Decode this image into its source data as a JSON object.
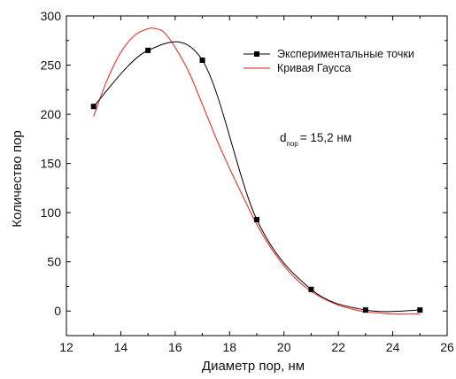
{
  "chart_data": {
    "type": "scatter",
    "xlabel": "Диаметр пор, нм",
    "ylabel": "Количество пор",
    "xlim": [
      12,
      26
    ],
    "ylim": [
      -25,
      300
    ],
    "x_ticks": [
      12,
      14,
      16,
      18,
      20,
      22,
      24,
      26
    ],
    "y_ticks": [
      0,
      50,
      100,
      150,
      200,
      250,
      300
    ],
    "x_tick_labels": [
      "12",
      "14",
      "16",
      "18",
      "20",
      "22",
      "24",
      "26"
    ],
    "y_tick_labels": [
      "0",
      "50",
      "100",
      "150",
      "200",
      "250",
      "300"
    ],
    "grid": false,
    "legend_position": "top-right",
    "series": [
      {
        "name": "Экспериментальные точки",
        "kind": "points-with-line",
        "color": "#000000",
        "marker": "square",
        "x": [
          13,
          15,
          17,
          19,
          21,
          23,
          25
        ],
        "y": [
          208,
          265,
          255,
          93,
          22,
          1,
          1
        ]
      },
      {
        "name": "Кривая Гаусса",
        "kind": "line",
        "color": "#e8413a",
        "x": [
          13.0,
          13.5,
          14.0,
          14.5,
          15.0,
          15.3,
          15.6,
          16.0,
          16.5,
          17.0,
          17.5,
          18.0,
          18.5,
          19.0,
          19.5,
          20.0,
          20.5,
          21.0,
          21.5,
          22.0,
          22.5,
          23.0,
          23.5,
          24.0,
          24.5,
          25.0
        ],
        "y": [
          198,
          235,
          263,
          280,
          287,
          287,
          283,
          268,
          243,
          210,
          176,
          145,
          116,
          88,
          65,
          46,
          31,
          20,
          12,
          6,
          2,
          -1,
          -2,
          -3,
          -3,
          -3
        ]
      }
    ],
    "annotation": {
      "prefix": "d",
      "subscript": "пор",
      "value_text": "= 15,2 нм"
    }
  }
}
